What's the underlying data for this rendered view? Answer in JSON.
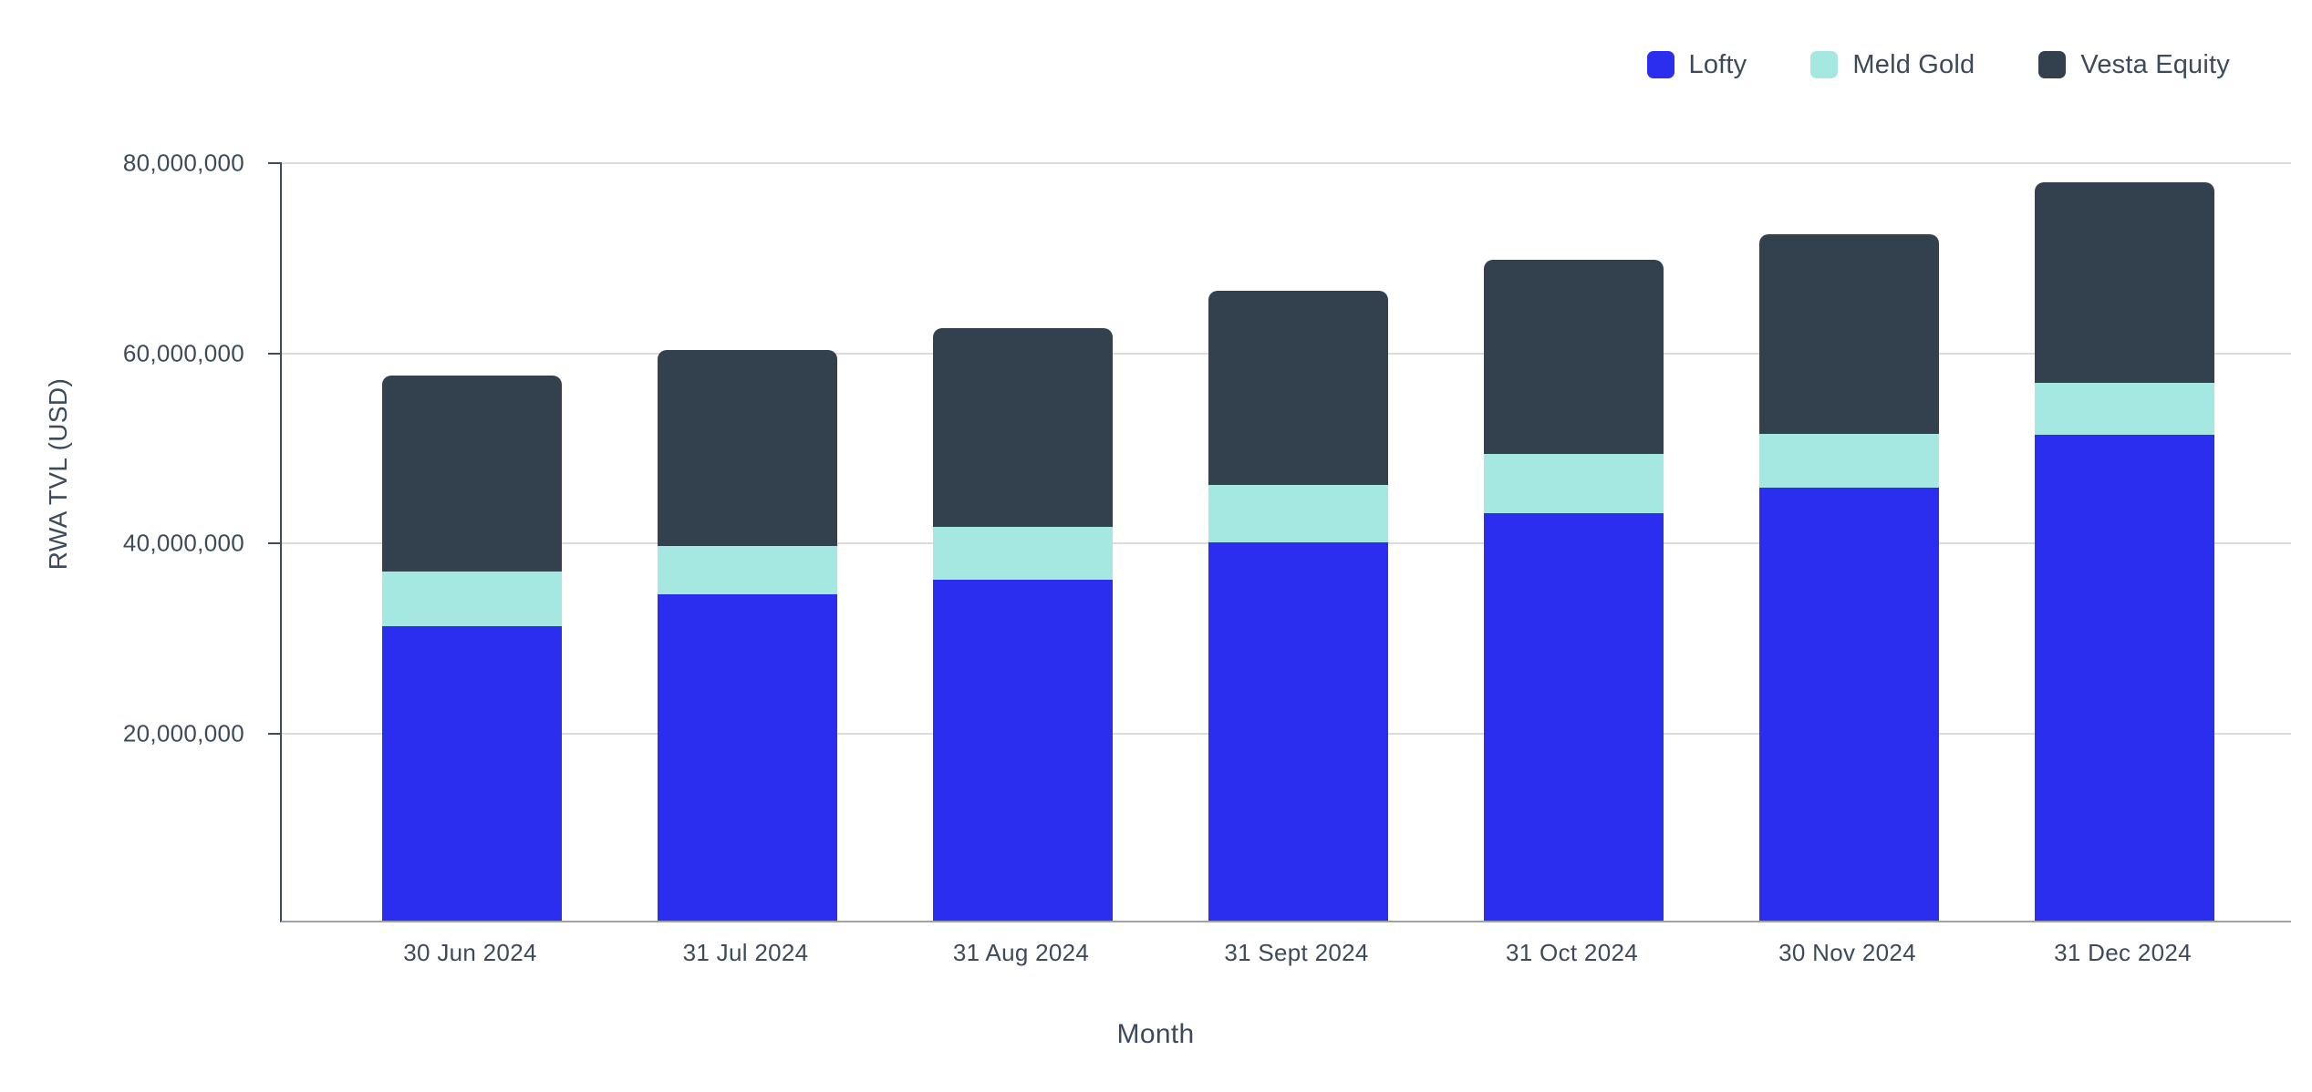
{
  "colors": {
    "background": "#FFFFFF",
    "lofty_blue": "#2B2DEF",
    "meld_gold_cyan": "#A4E8E1",
    "vesta_slate": "#33404E",
    "label_text": "#3E4A59",
    "gridline": "#DADCDE",
    "y_axis_line": "#3E4C59",
    "x_baseline": "#9EA3A8"
  },
  "legend": {
    "position": "top-right",
    "items": [
      {
        "label": "Lofty",
        "color": "#2B2DEF"
      },
      {
        "label": "Meld Gold",
        "color": "#A4E8E1"
      },
      {
        "label": "Vesta Equity",
        "color": "#33404E"
      }
    ]
  },
  "chart_data": {
    "type": "bar",
    "stacked": true,
    "title": "",
    "xlabel": "Month",
    "ylabel": "RWA TVL (USD)",
    "categories": [
      "30 Jun 2024",
      "31 Jul 2024",
      "31 Aug 2024",
      "31 Sept 2024",
      "31 Oct 2024",
      "30 Nov 2024",
      "31 Dec 2024"
    ],
    "series": [
      {
        "name": "Lofty",
        "color": "#2B2DEF",
        "values": [
          31000000,
          34300000,
          35900000,
          39800000,
          42900000,
          45600000,
          51100000
        ]
      },
      {
        "name": "Meld Gold",
        "color": "#A4E8E1",
        "values": [
          5700000,
          5100000,
          5500000,
          6100000,
          6200000,
          5600000,
          5500000
        ]
      },
      {
        "name": "Vesta Equity",
        "color": "#33404E",
        "values": [
          20700000,
          20600000,
          21000000,
          20400000,
          20500000,
          21000000,
          21100000
        ]
      }
    ],
    "stack_order_bottom_to_top": [
      "Lofty",
      "Meld Gold",
      "Vesta Equity"
    ],
    "totals": [
      57400000,
      60000000,
      62400000,
      66300000,
      69600000,
      72200000,
      77700000
    ],
    "ylim": [
      0,
      80000000
    ],
    "yticks": [
      {
        "value": 80000000,
        "label": "80,000,000"
      },
      {
        "value": 60000000,
        "label": "60,000,000"
      },
      {
        "value": 40000000,
        "label": "40,000,000"
      },
      {
        "value": 20000000,
        "label": "20,000,000"
      }
    ],
    "grid": true,
    "legend_position": "top-right"
  }
}
